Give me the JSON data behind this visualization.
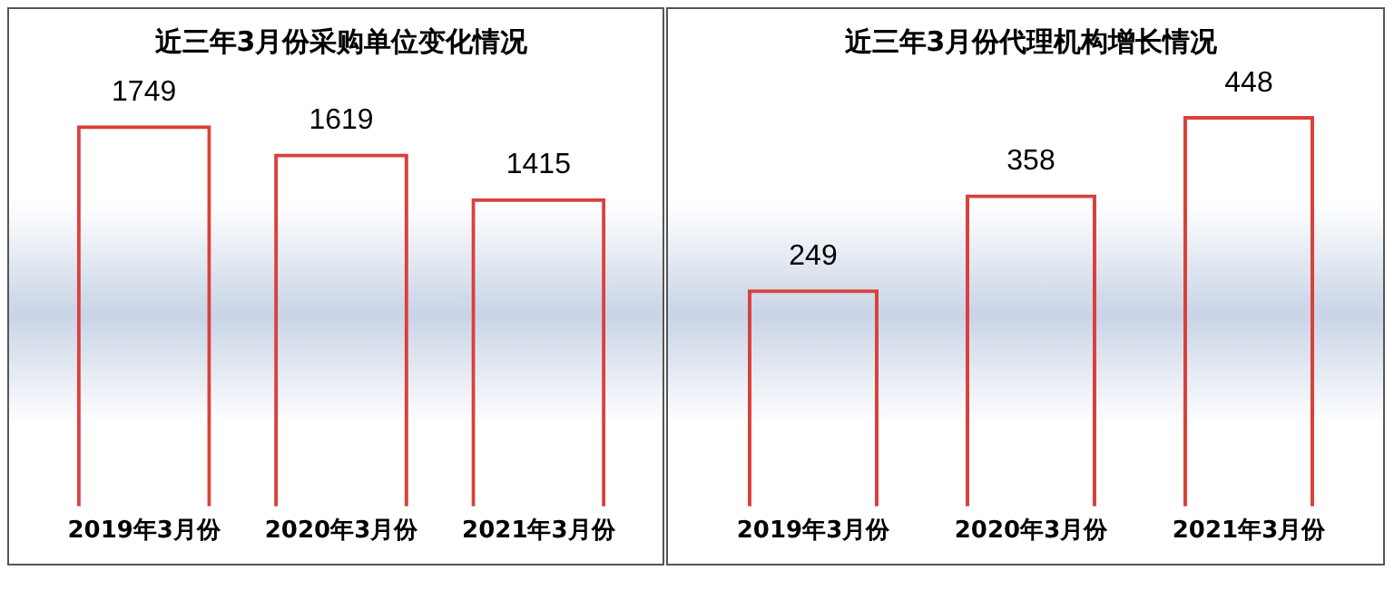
{
  "chart_data": [
    {
      "type": "bar",
      "title": "近三年3月份采购单位变化情况",
      "categories": [
        "2019年3月份",
        "2020年3月份",
        "2021年3月份"
      ],
      "values": [
        1749,
        1619,
        1415
      ],
      "color": "#d9413c",
      "data_labels": true,
      "legend": false,
      "grid": false,
      "tick_labels": "x"
    },
    {
      "type": "bar",
      "title": "近三年3月份代理机构增长情况",
      "categories": [
        "2019年3月份",
        "2020年3月份",
        "2021年3月份"
      ],
      "values": [
        249,
        358,
        448
      ],
      "color": "#d9413c",
      "data_labels": true,
      "legend": false,
      "grid": false,
      "tick_labels": "x"
    }
  ]
}
